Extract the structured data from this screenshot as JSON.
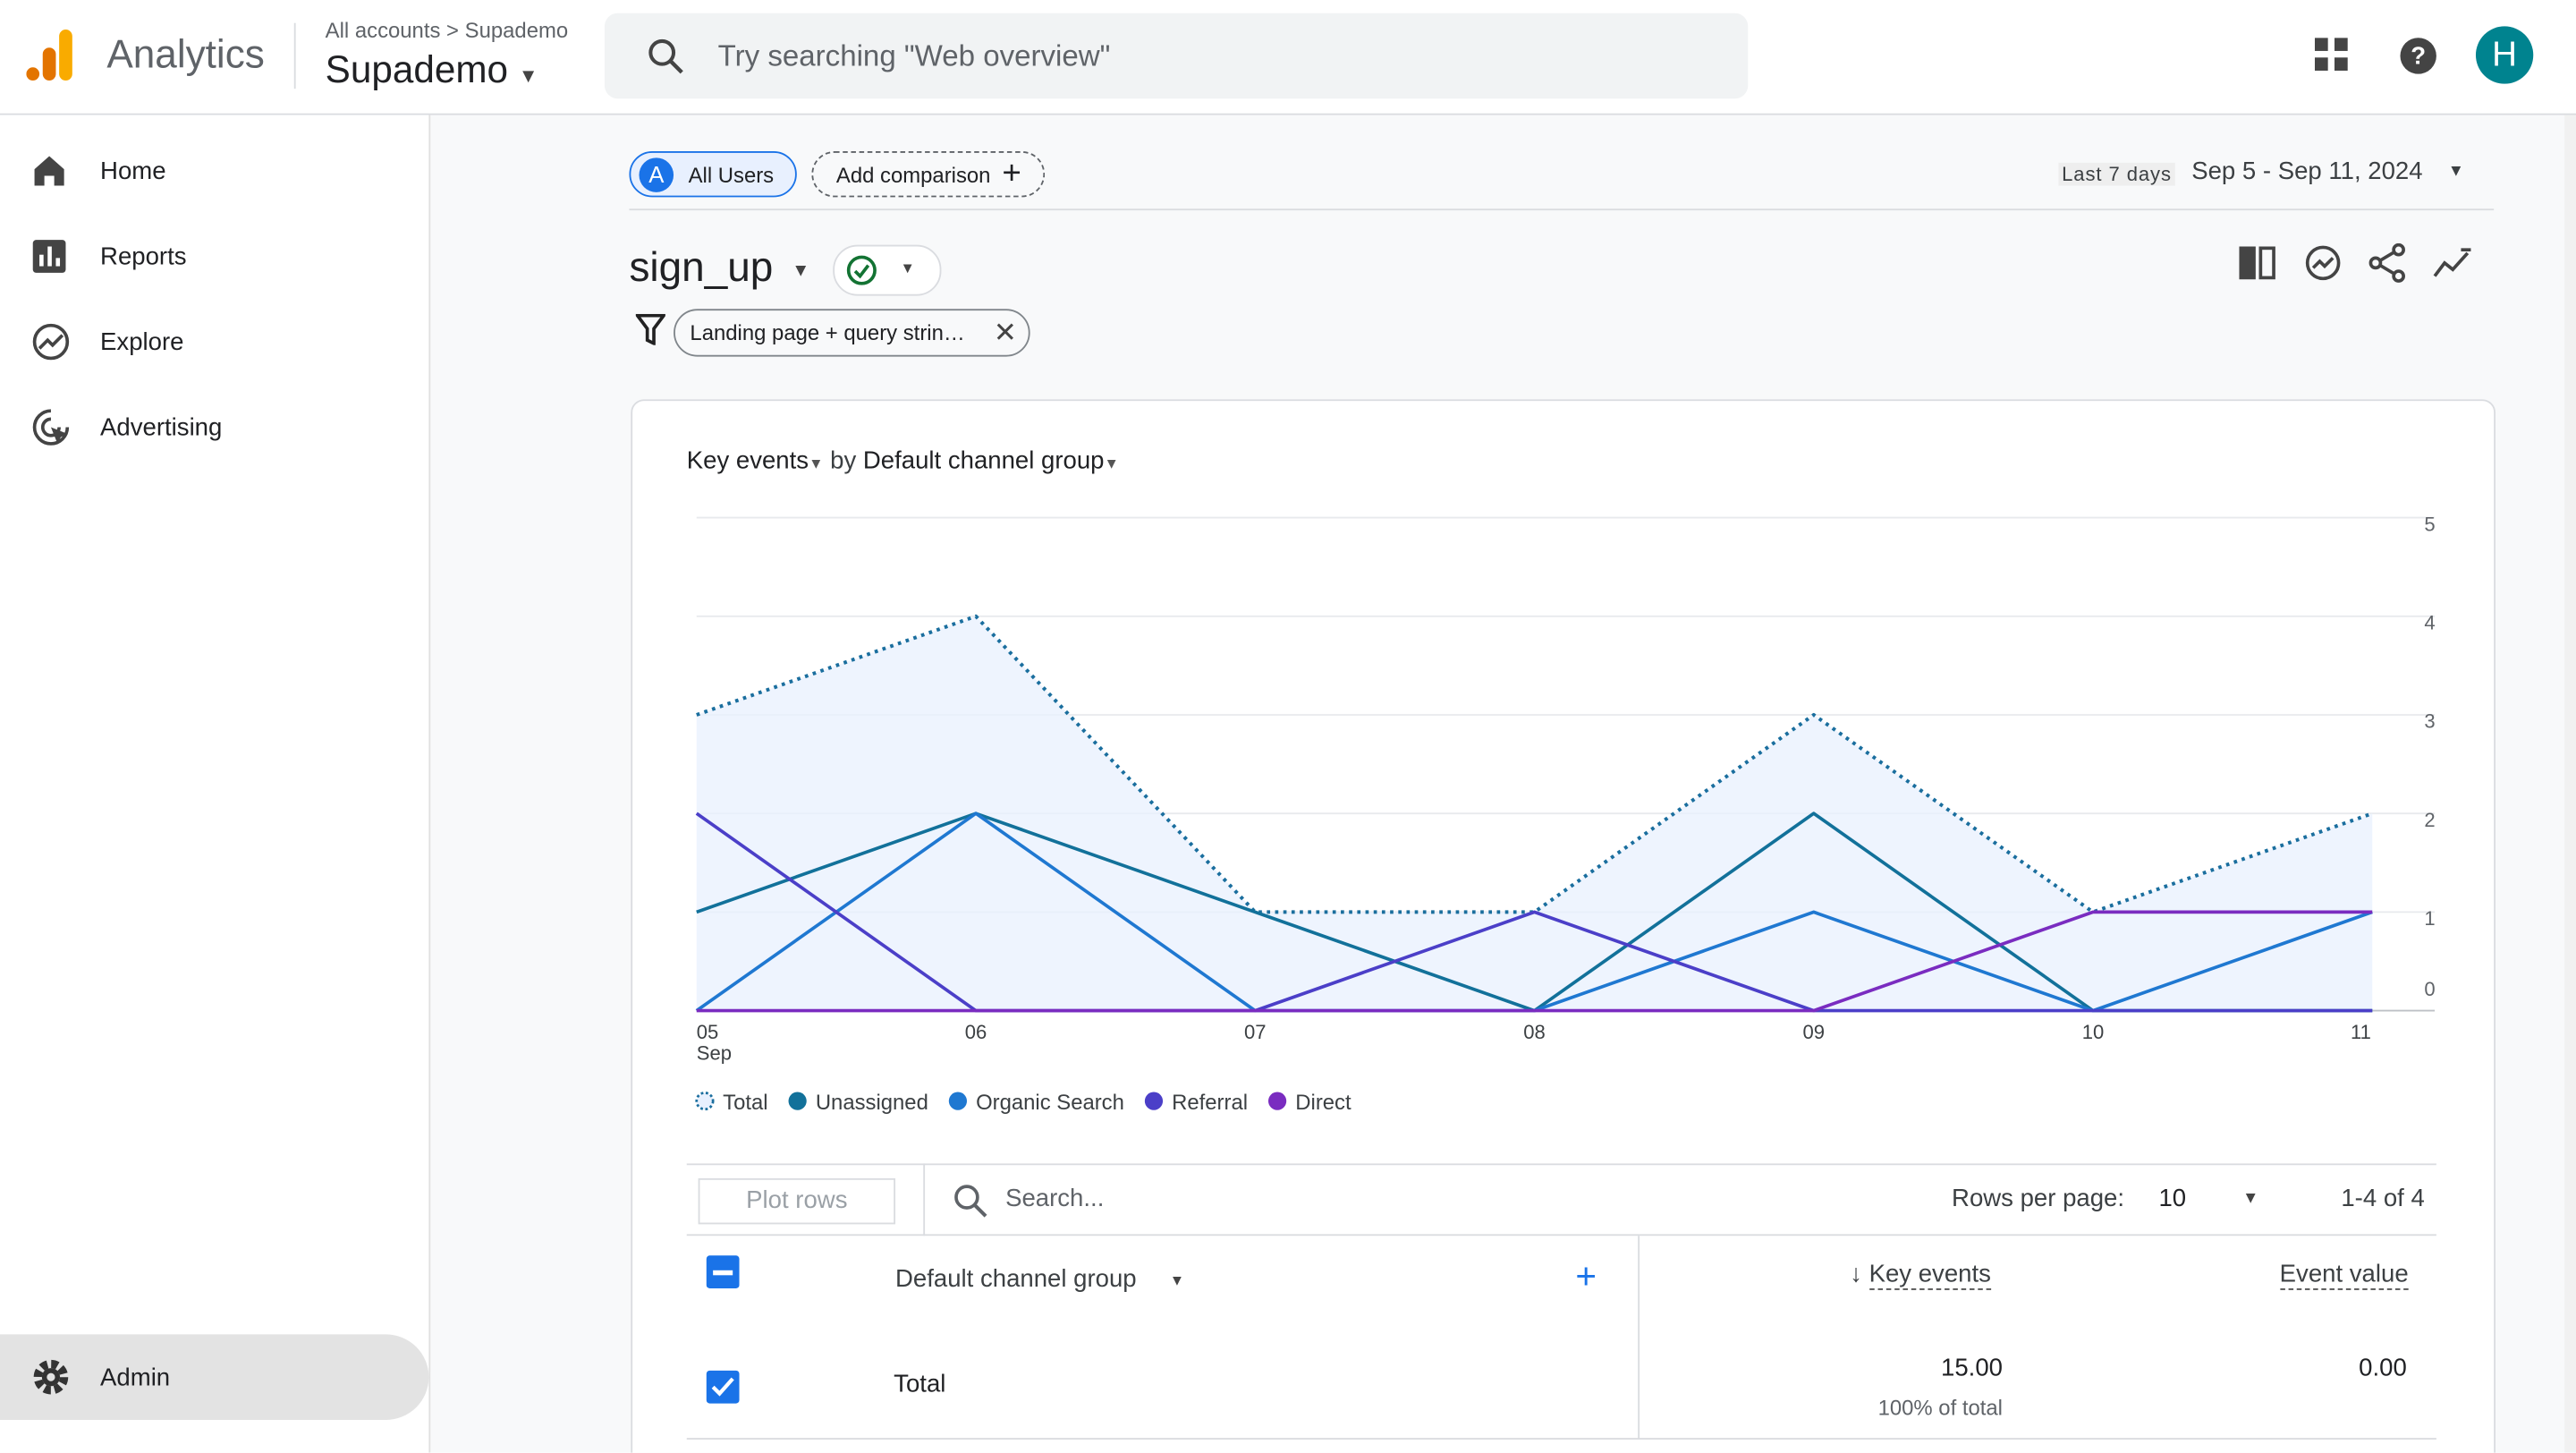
{
  "header": {
    "product": "Analytics",
    "breadcrumb_root": "All accounts",
    "breadcrumb_account": "Supademo",
    "property": "Supademo",
    "search_placeholder": "Try searching \"Web overview\"",
    "avatar": "H"
  },
  "nav": [
    "Home",
    "Reports",
    "Explore",
    "Advertising"
  ],
  "admin": "Admin",
  "toolbar": {
    "segment_badge": "A",
    "segment": "All Users",
    "add_comparison": "Add comparison",
    "date_label": "Last 7 days",
    "date_range": "Sep 5 - Sep 11, 2024"
  },
  "report": {
    "event": "sign_up",
    "filter": "Landing page + query strin…"
  },
  "chart_data": {
    "type": "line",
    "title_metric": "Key events",
    "title_by": "by",
    "title_dimension": "Default channel group",
    "categories": [
      "05",
      "06",
      "07",
      "08",
      "09",
      "10",
      "11"
    ],
    "x_sublabel": "Sep",
    "ylim": [
      0,
      5
    ],
    "yticks": [
      0,
      1,
      2,
      3,
      4,
      5
    ],
    "grid": true,
    "series": [
      {
        "name": "Total",
        "color": "#1a6e9e",
        "dashed": true,
        "area": true,
        "values": [
          3,
          4,
          1,
          1,
          3,
          1,
          2
        ]
      },
      {
        "name": "Unassigned",
        "color": "#12719a",
        "values": [
          1,
          2,
          1,
          0,
          2,
          0,
          0
        ]
      },
      {
        "name": "Organic Search",
        "color": "#1f78d1",
        "values": [
          0,
          2,
          0,
          0,
          1,
          0,
          1
        ]
      },
      {
        "name": "Referral",
        "color": "#4b3fc8",
        "values": [
          2,
          0,
          0,
          1,
          0,
          0,
          0
        ]
      },
      {
        "name": "Direct",
        "color": "#7a2cc0",
        "values": [
          0,
          0,
          0,
          0,
          0,
          1,
          1
        ]
      }
    ]
  },
  "table": {
    "plot_rows": "Plot rows",
    "search_placeholder": "Search...",
    "rows_per_page_label": "Rows per page:",
    "rows_per_page": "10",
    "range": "1-4 of 4",
    "columns": [
      "Default channel group",
      "Key events",
      "Event value"
    ],
    "rows": [
      [
        "Total",
        "15.00",
        "0.00"
      ]
    ],
    "total_share": "100% of total"
  }
}
